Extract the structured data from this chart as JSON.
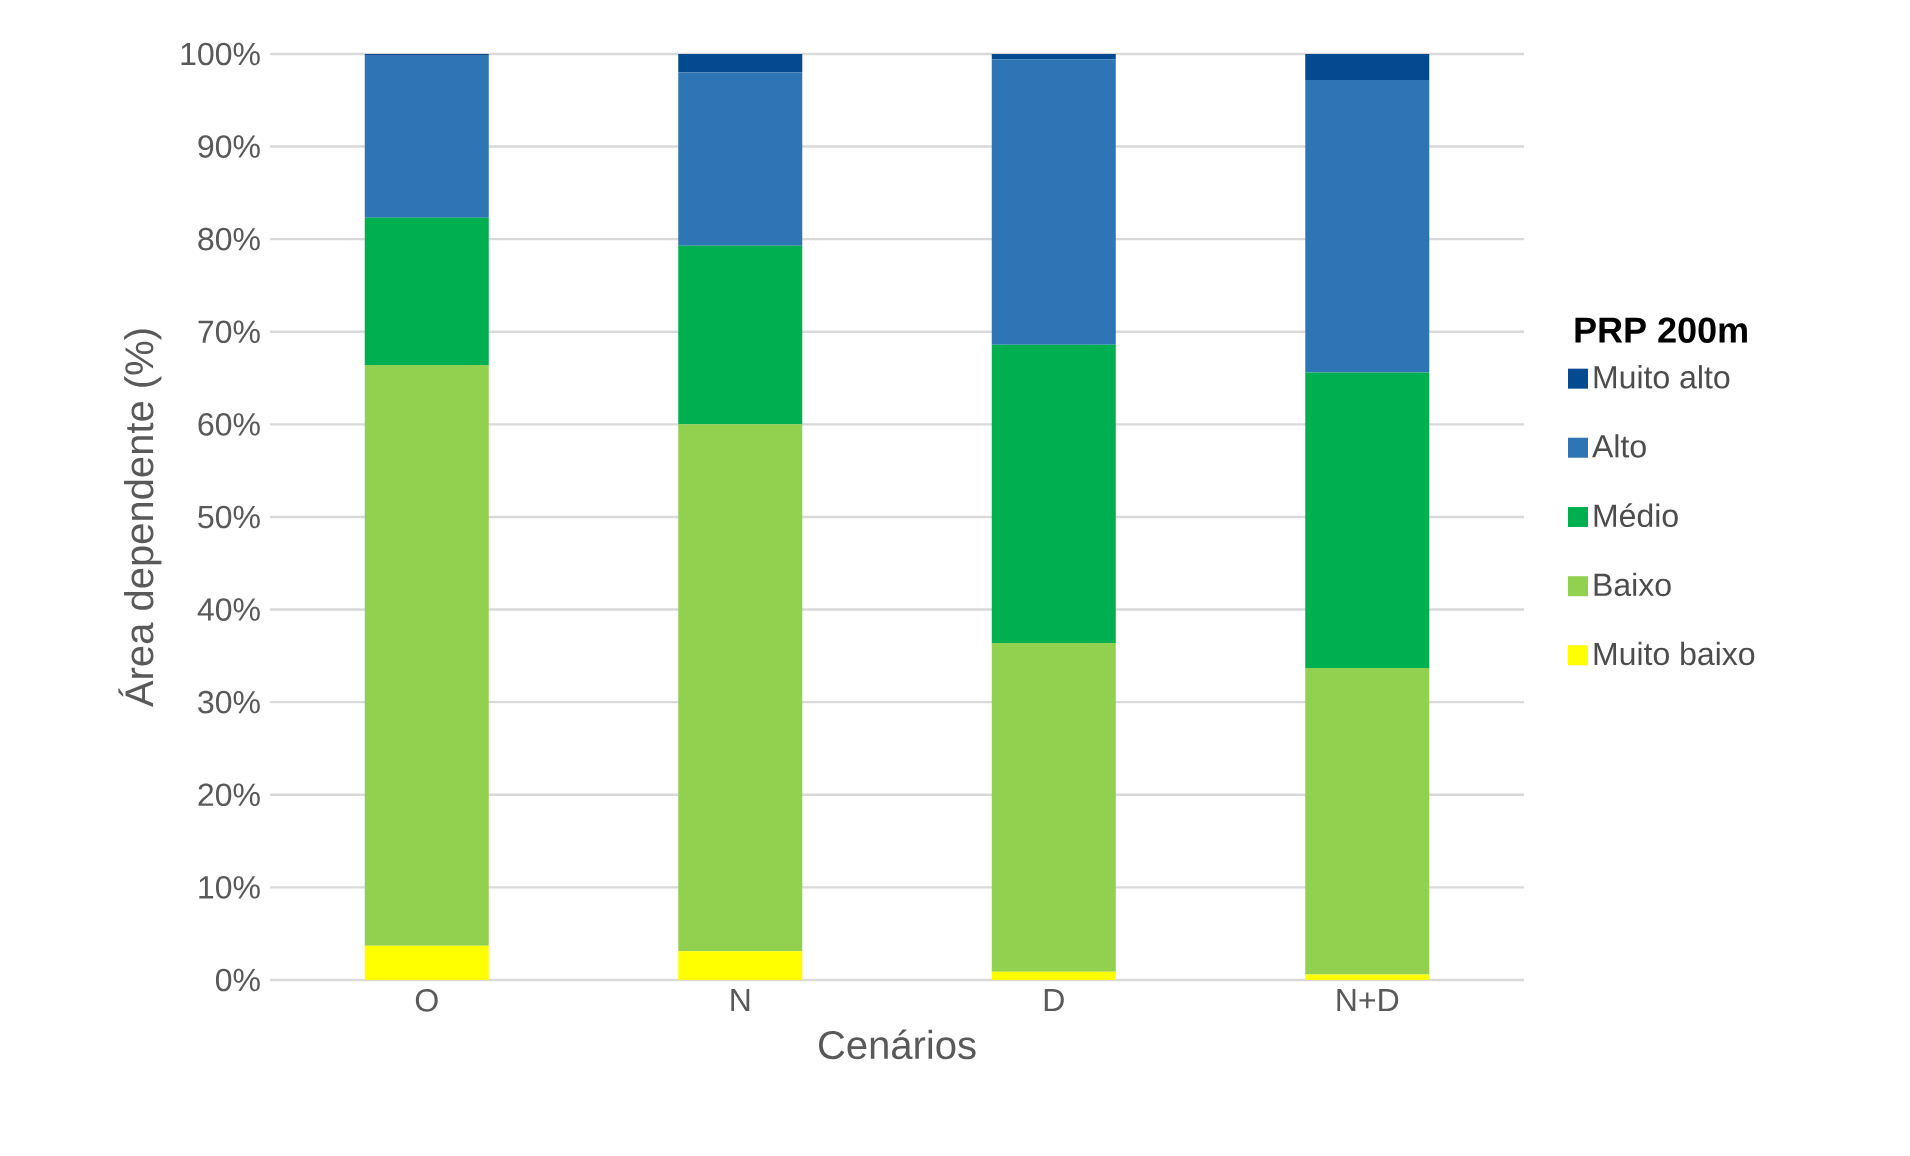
{
  "chart_data": {
    "type": "bar",
    "stacked": true,
    "xlabel": "Cenários",
    "ylabel": "Área dependente (%)",
    "legend_title": "PRP 200m",
    "categories": [
      "O",
      "N",
      "D",
      "N+D"
    ],
    "series": [
      {
        "name": "Muito baixo",
        "color": "#ffff00",
        "values": [
          3.7,
          3.1,
          0.9,
          0.6
        ]
      },
      {
        "name": "Baixo",
        "color": "#92d050",
        "values": [
          62.7,
          56.9,
          35.5,
          33.1
        ]
      },
      {
        "name": "Médio",
        "color": "#00b050",
        "values": [
          15.9,
          19.3,
          32.2,
          31.9
        ]
      },
      {
        "name": "Alto",
        "color": "#2e75b6",
        "values": [
          17.5,
          18.7,
          30.8,
          31.6
        ]
      },
      {
        "name": "Muito alto",
        "color": "#034a90",
        "values": [
          0.2,
          2.0,
          0.6,
          2.8
        ]
      }
    ],
    "ylim": [
      0,
      100
    ],
    "yticks": [
      {
        "value": 0,
        "label": "0%"
      },
      {
        "value": 10,
        "label": "10%"
      },
      {
        "value": 20,
        "label": "20%"
      },
      {
        "value": 30,
        "label": "30%"
      },
      {
        "value": 40,
        "label": "40%"
      },
      {
        "value": 50,
        "label": "50%"
      },
      {
        "value": 60,
        "label": "60%"
      },
      {
        "value": 70,
        "label": "70%"
      },
      {
        "value": 80,
        "label": "80%"
      },
      {
        "value": 90,
        "label": "90%"
      },
      {
        "value": 100,
        "label": "100%"
      }
    ],
    "grid": "y",
    "legend": "right"
  }
}
